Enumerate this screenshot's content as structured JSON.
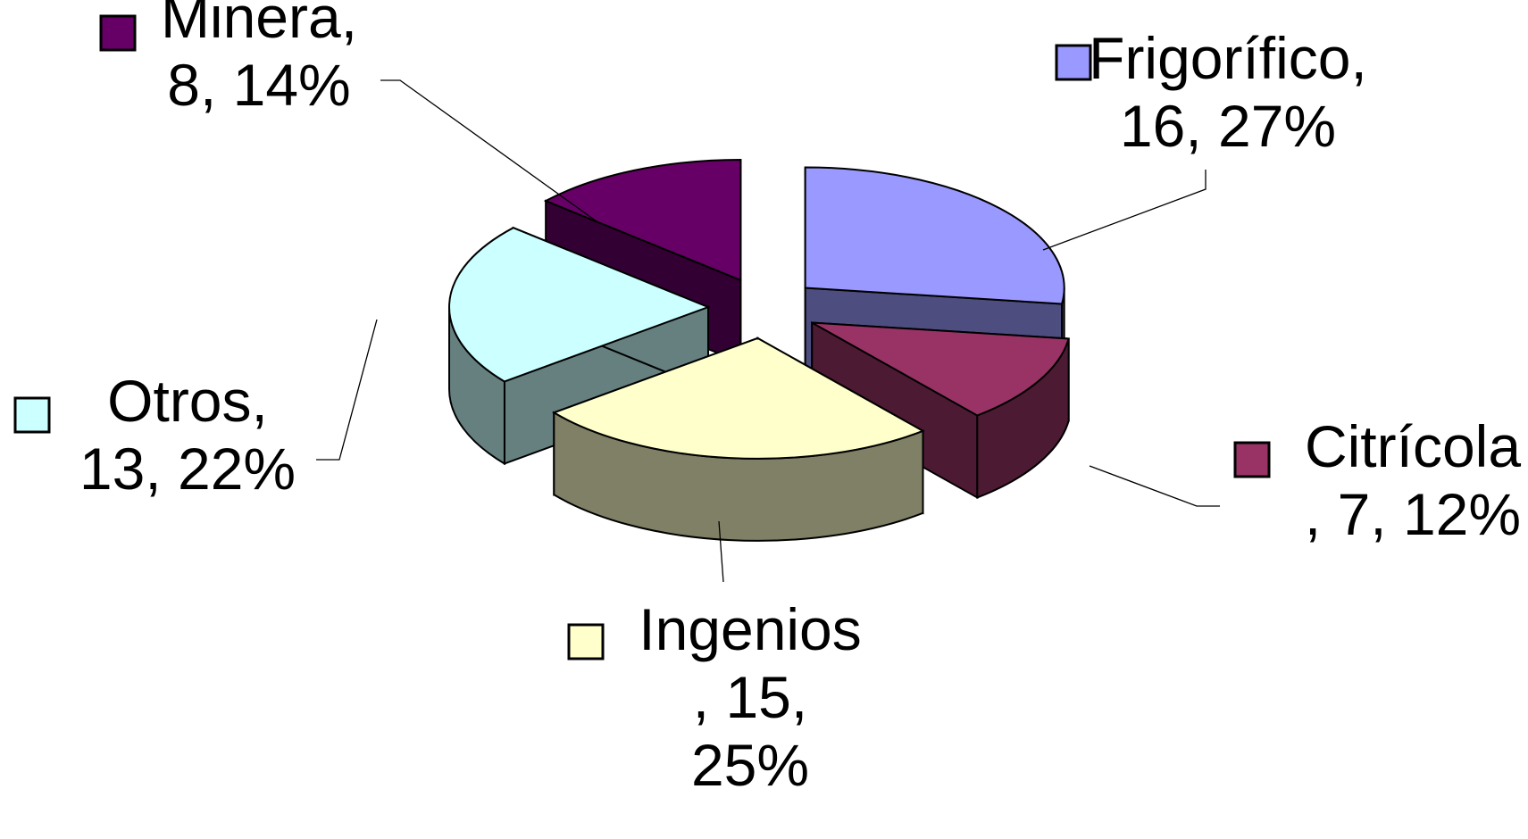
{
  "chart_data": {
    "type": "pie",
    "variant": "3d-exploded",
    "title": "",
    "slices": [
      {
        "label": "Frigorífico",
        "value": 16,
        "percent": "27%",
        "label_lines": [
          "Frigorífico,",
          "16, 27%"
        ],
        "color": "#9999ff",
        "side_color": "#4d4d80",
        "marker_color": "#9999ff"
      },
      {
        "label": "Citrícola",
        "value": 7,
        "percent": "12%",
        "label_lines": [
          "Citrícola",
          ", 7, 12%"
        ],
        "color": "#993366",
        "side_color": "#4d1a33",
        "marker_color": "#993366"
      },
      {
        "label": "Ingenios",
        "value": 15,
        "percent": "25%",
        "label_lines": [
          "Ingenios",
          ", 15,",
          "25%"
        ],
        "color": "#ffffcc",
        "side_color": "#808066",
        "marker_color": "#ffffcc"
      },
      {
        "label": "Otros",
        "value": 13,
        "percent": "22%",
        "label_lines": [
          "Otros,",
          "13, 22%"
        ],
        "color": "#ccffff",
        "side_color": "#668080",
        "marker_color": "#ccffff"
      },
      {
        "label": "Minera",
        "value": 8,
        "percent": "14%",
        "label_lines": [
          "Minera,",
          "8, 14%"
        ],
        "color": "#660066",
        "side_color": "#330033",
        "marker_color": "#660066"
      }
    ],
    "legend": "none",
    "data_labels": "category, value, percent",
    "leader_lines": true
  }
}
